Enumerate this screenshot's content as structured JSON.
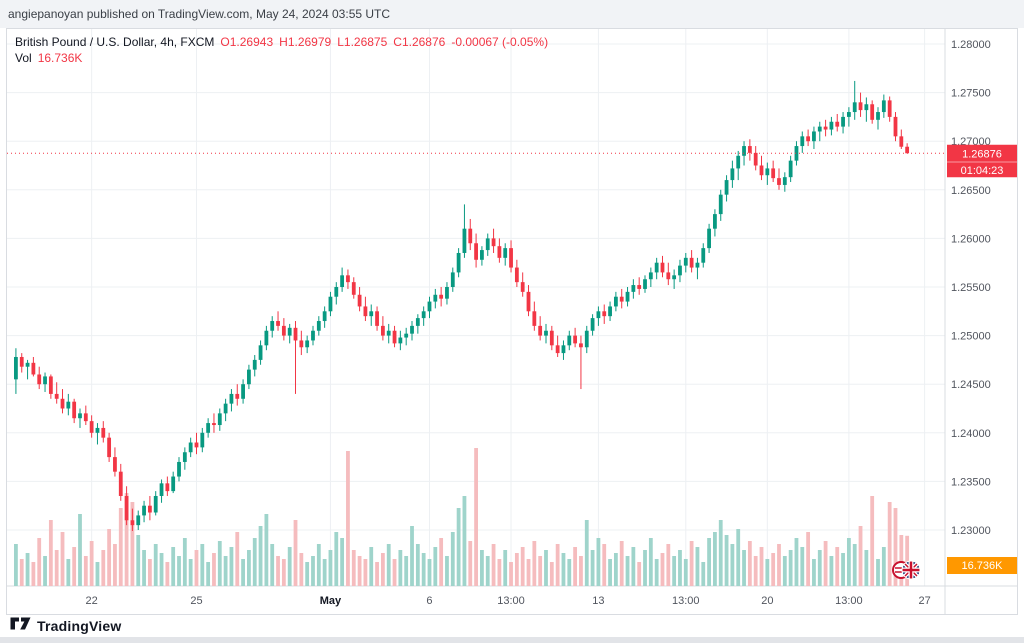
{
  "header": {
    "publish_line": "angiepanoyan published on TradingView.com, May 24, 2024 03:55 UTC"
  },
  "legend": {
    "symbol": "British Pound / U.S. Dollar, 4h, FXCM",
    "o_label": "O",
    "o": "1.26943",
    "h_label": "H",
    "h": "1.26979",
    "l_label": "L",
    "l": "1.26875",
    "c_label": "C",
    "c": "1.26876",
    "change": "-0.00067 (-0.05%)",
    "vol_label": "Vol",
    "vol_value": "16.736K"
  },
  "footer": {
    "brand": "TradingView"
  },
  "chart_data": {
    "type": "candlestick",
    "title": "British Pound / U.S. Dollar, 4h, FXCM",
    "interval": "4h",
    "exchange": "FXCM",
    "last_price": "1.26876",
    "countdown": "01:04:23",
    "volume_display": "16.736K",
    "y_axis": {
      "min": 1.23,
      "max": 1.28
    },
    "y_ticks": [
      "1.28000",
      "1.27500",
      "1.27000",
      "1.26500",
      "1.26000",
      "1.25500",
      "1.25000",
      "1.24500",
      "1.24000",
      "1.23500",
      "1.23000"
    ],
    "x_ticks": [
      {
        "label": "22",
        "i": 13
      },
      {
        "label": "25",
        "i": 31
      },
      {
        "label": "May",
        "i": 54
      },
      {
        "label": "6",
        "i": 71
      },
      {
        "label": "13:00",
        "i": 85
      },
      {
        "label": "13",
        "i": 100
      },
      {
        "label": "13:00",
        "i": 115
      },
      {
        "label": "20",
        "i": 129
      },
      {
        "label": "13:00",
        "i": 143
      },
      {
        "label": "27",
        "i": 156
      }
    ],
    "total_slots": 160,
    "colors": {
      "up": "#089981",
      "down": "#f23645",
      "vol_up": "#9fd4cb",
      "vol_down": "#f5bcbe",
      "grid": "#edf0f3",
      "axis_text": "#51555e",
      "last_price": "#f23645",
      "vol_badge": "#ff9800",
      "badge_text": "#ffffff"
    },
    "candles": [
      [
        1.2455,
        1.2487,
        1.244,
        1.2478
      ],
      [
        1.2478,
        1.2482,
        1.2462,
        1.2468
      ],
      [
        1.2468,
        1.2475,
        1.2455,
        1.2472
      ],
      [
        1.2472,
        1.2478,
        1.2458,
        1.246
      ],
      [
        1.246,
        1.2468,
        1.2445,
        1.245
      ],
      [
        1.245,
        1.2462,
        1.2442,
        1.2458
      ],
      [
        1.2458,
        1.246,
        1.2435,
        1.244
      ],
      [
        1.244,
        1.2452,
        1.243,
        1.2435
      ],
      [
        1.2435,
        1.2445,
        1.242,
        1.2425
      ],
      [
        1.2425,
        1.244,
        1.2418,
        1.2432
      ],
      [
        1.2432,
        1.2435,
        1.241,
        1.2415
      ],
      [
        1.2415,
        1.2425,
        1.2405,
        1.242
      ],
      [
        1.242,
        1.2428,
        1.2408,
        1.2412
      ],
      [
        1.2412,
        1.2418,
        1.2395,
        1.24
      ],
      [
        1.24,
        1.241,
        1.2388,
        1.2405
      ],
      [
        1.2405,
        1.2412,
        1.239,
        1.2395
      ],
      [
        1.2395,
        1.24,
        1.237,
        1.2375
      ],
      [
        1.2375,
        1.2385,
        1.2355,
        1.236
      ],
      [
        1.236,
        1.2368,
        1.233,
        1.2335
      ],
      [
        1.2335,
        1.2345,
        1.2305,
        1.231
      ],
      [
        1.231,
        1.2322,
        1.2299,
        1.2305
      ],
      [
        1.2305,
        1.232,
        1.23,
        1.2315
      ],
      [
        1.2315,
        1.233,
        1.2308,
        1.2325
      ],
      [
        1.2325,
        1.2335,
        1.231,
        1.2318
      ],
      [
        1.2318,
        1.234,
        1.2315,
        1.2335
      ],
      [
        1.2335,
        1.2352,
        1.2328,
        1.2348
      ],
      [
        1.2348,
        1.2355,
        1.2335,
        1.234
      ],
      [
        1.234,
        1.236,
        1.2338,
        1.2355
      ],
      [
        1.2355,
        1.2375,
        1.235,
        1.237
      ],
      [
        1.237,
        1.2385,
        1.2362,
        1.238
      ],
      [
        1.238,
        1.2395,
        1.2375,
        1.239
      ],
      [
        1.239,
        1.24,
        1.2378,
        1.2385
      ],
      [
        1.2385,
        1.2405,
        1.238,
        1.24
      ],
      [
        1.24,
        1.2415,
        1.2395,
        1.241
      ],
      [
        1.241,
        1.242,
        1.24,
        1.2408
      ],
      [
        1.2408,
        1.2425,
        1.2402,
        1.242
      ],
      [
        1.242,
        1.2435,
        1.2412,
        1.243
      ],
      [
        1.243,
        1.2445,
        1.2422,
        1.244
      ],
      [
        1.244,
        1.245,
        1.2428,
        1.2435
      ],
      [
        1.2435,
        1.2455,
        1.243,
        1.245
      ],
      [
        1.245,
        1.247,
        1.2445,
        1.2465
      ],
      [
        1.2465,
        1.248,
        1.2458,
        1.2475
      ],
      [
        1.2475,
        1.2495,
        1.247,
        1.249
      ],
      [
        1.249,
        1.251,
        1.2485,
        1.2505
      ],
      [
        1.2505,
        1.252,
        1.2498,
        1.2515
      ],
      [
        1.2515,
        1.2525,
        1.2505,
        1.251
      ],
      [
        1.251,
        1.2518,
        1.2495,
        1.25
      ],
      [
        1.25,
        1.2512,
        1.2492,
        1.2508
      ],
      [
        1.2508,
        1.2515,
        1.244,
        1.2495
      ],
      [
        1.2495,
        1.2505,
        1.248,
        1.2488
      ],
      [
        1.2488,
        1.25,
        1.2482,
        1.2495
      ],
      [
        1.2495,
        1.251,
        1.249,
        1.2505
      ],
      [
        1.2505,
        1.252,
        1.25,
        1.2515
      ],
      [
        1.2515,
        1.253,
        1.2508,
        1.2525
      ],
      [
        1.2525,
        1.2545,
        1.252,
        1.254
      ],
      [
        1.254,
        1.2555,
        1.2532,
        1.255
      ],
      [
        1.255,
        1.257,
        1.2545,
        1.2562
      ],
      [
        1.2562,
        1.2568,
        1.2548,
        1.2555
      ],
      [
        1.2555,
        1.256,
        1.2538,
        1.2542
      ],
      [
        1.2542,
        1.255,
        1.2525,
        1.253
      ],
      [
        1.253,
        1.254,
        1.2515,
        1.252
      ],
      [
        1.252,
        1.2532,
        1.251,
        1.2525
      ],
      [
        1.2525,
        1.253,
        1.2505,
        1.251
      ],
      [
        1.251,
        1.252,
        1.2495,
        1.25
      ],
      [
        1.25,
        1.2512,
        1.2492,
        1.2505
      ],
      [
        1.2505,
        1.251,
        1.2488,
        1.2492
      ],
      [
        1.2492,
        1.2505,
        1.2485,
        1.2498
      ],
      [
        1.2498,
        1.2508,
        1.249,
        1.2502
      ],
      [
        1.2502,
        1.2515,
        1.2495,
        1.251
      ],
      [
        1.251,
        1.2522,
        1.2502,
        1.2518
      ],
      [
        1.2518,
        1.253,
        1.251,
        1.2525
      ],
      [
        1.2525,
        1.254,
        1.2518,
        1.2535
      ],
      [
        1.2535,
        1.2548,
        1.2528,
        1.2542
      ],
      [
        1.2542,
        1.255,
        1.253,
        1.2538
      ],
      [
        1.2538,
        1.2555,
        1.2532,
        1.255
      ],
      [
        1.255,
        1.257,
        1.2545,
        1.2565
      ],
      [
        1.2565,
        1.259,
        1.256,
        1.2585
      ],
      [
        1.2585,
        1.2635,
        1.258,
        1.261
      ],
      [
        1.261,
        1.262,
        1.2588,
        1.2595
      ],
      [
        1.2595,
        1.2605,
        1.257,
        1.2578
      ],
      [
        1.2578,
        1.2592,
        1.2572,
        1.2588
      ],
      [
        1.2588,
        1.2605,
        1.2582,
        1.26
      ],
      [
        1.26,
        1.261,
        1.2585,
        1.2592
      ],
      [
        1.2592,
        1.26,
        1.2575,
        1.258
      ],
      [
        1.258,
        1.2595,
        1.2572,
        1.259
      ],
      [
        1.259,
        1.2598,
        1.2565,
        1.257
      ],
      [
        1.257,
        1.2578,
        1.255,
        1.2555
      ],
      [
        1.2555,
        1.2565,
        1.254,
        1.2545
      ],
      [
        1.2545,
        1.2552,
        1.252,
        1.2525
      ],
      [
        1.2525,
        1.2535,
        1.2505,
        1.251
      ],
      [
        1.251,
        1.252,
        1.2495,
        1.25
      ],
      [
        1.25,
        1.2512,
        1.2492,
        1.2505
      ],
      [
        1.2505,
        1.251,
        1.2485,
        1.249
      ],
      [
        1.249,
        1.25,
        1.2478,
        1.2482
      ],
      [
        1.2482,
        1.2495,
        1.2475,
        1.249
      ],
      [
        1.249,
        1.2505,
        1.2485,
        1.25
      ],
      [
        1.25,
        1.2508,
        1.2488,
        1.2492
      ],
      [
        1.2492,
        1.25,
        1.2445,
        1.2488
      ],
      [
        1.2488,
        1.251,
        1.2482,
        1.2505
      ],
      [
        1.2505,
        1.2522,
        1.25,
        1.2518
      ],
      [
        1.2518,
        1.253,
        1.251,
        1.2525
      ],
      [
        1.2525,
        1.2532,
        1.2512,
        1.252
      ],
      [
        1.252,
        1.2535,
        1.2515,
        1.253
      ],
      [
        1.253,
        1.2545,
        1.2525,
        1.254
      ],
      [
        1.254,
        1.2548,
        1.2528,
        1.2535
      ],
      [
        1.2535,
        1.255,
        1.253,
        1.2545
      ],
      [
        1.2545,
        1.2558,
        1.2538,
        1.2552
      ],
      [
        1.2552,
        1.256,
        1.2542,
        1.2548
      ],
      [
        1.2548,
        1.2562,
        1.2544,
        1.2558
      ],
      [
        1.2558,
        1.257,
        1.255,
        1.2565
      ],
      [
        1.2565,
        1.258,
        1.2558,
        1.2575
      ],
      [
        1.2575,
        1.2582,
        1.256,
        1.2565
      ],
      [
        1.2565,
        1.2575,
        1.2552,
        1.2558
      ],
      [
        1.2558,
        1.2568,
        1.2548,
        1.2562
      ],
      [
        1.2562,
        1.2578,
        1.2555,
        1.2572
      ],
      [
        1.2572,
        1.2585,
        1.2565,
        1.258
      ],
      [
        1.258,
        1.2588,
        1.2565,
        1.257
      ],
      [
        1.257,
        1.258,
        1.2558,
        1.2575
      ],
      [
        1.2575,
        1.2595,
        1.257,
        1.259
      ],
      [
        1.259,
        1.2615,
        1.2585,
        1.261
      ],
      [
        1.261,
        1.263,
        1.2602,
        1.2625
      ],
      [
        1.2625,
        1.265,
        1.2618,
        1.2645
      ],
      [
        1.2645,
        1.2665,
        1.2638,
        1.266
      ],
      [
        1.266,
        1.268,
        1.2652,
        1.2672
      ],
      [
        1.2672,
        1.269,
        1.266,
        1.2685
      ],
      [
        1.2685,
        1.27,
        1.2675,
        1.2695
      ],
      [
        1.2695,
        1.2702,
        1.268,
        1.2688
      ],
      [
        1.2688,
        1.2695,
        1.267,
        1.2675
      ],
      [
        1.2675,
        1.2685,
        1.266,
        1.2665
      ],
      [
        1.2665,
        1.2678,
        1.2655,
        1.2672
      ],
      [
        1.2672,
        1.268,
        1.2658,
        1.2662
      ],
      [
        1.2662,
        1.2672,
        1.265,
        1.2655
      ],
      [
        1.2655,
        1.2668,
        1.2648,
        1.2663
      ],
      [
        1.2663,
        1.2685,
        1.2658,
        1.268
      ],
      [
        1.268,
        1.27,
        1.2675,
        1.2695
      ],
      [
        1.2695,
        1.271,
        1.2688,
        1.2705
      ],
      [
        1.2705,
        1.2712,
        1.2695,
        1.27
      ],
      [
        1.27,
        1.2715,
        1.2692,
        1.271
      ],
      [
        1.271,
        1.272,
        1.27,
        1.2715
      ],
      [
        1.2715,
        1.2722,
        1.2705,
        1.2712
      ],
      [
        1.2712,
        1.2725,
        1.2706,
        1.272
      ],
      [
        1.272,
        1.2728,
        1.271,
        1.2715
      ],
      [
        1.2715,
        1.273,
        1.2708,
        1.2725
      ],
      [
        1.2725,
        1.2735,
        1.2715,
        1.273
      ],
      [
        1.273,
        1.2762,
        1.2722,
        1.274
      ],
      [
        1.274,
        1.275,
        1.2725,
        1.2732
      ],
      [
        1.2732,
        1.2745,
        1.272,
        1.2738
      ],
      [
        1.2738,
        1.2742,
        1.2718,
        1.2722
      ],
      [
        1.2722,
        1.2735,
        1.2712,
        1.273
      ],
      [
        1.273,
        1.2748,
        1.2724,
        1.2742
      ],
      [
        1.2742,
        1.2746,
        1.272,
        1.2725
      ],
      [
        1.2725,
        1.273,
        1.27,
        1.2705
      ],
      [
        1.2705,
        1.2712,
        1.2692,
        1.26943
      ],
      [
        1.26943,
        1.26979,
        1.26875,
        1.26876
      ]
    ],
    "volumes": [
      14,
      9,
      11,
      8,
      16,
      10,
      22,
      12,
      18,
      9,
      13,
      24,
      10,
      15,
      8,
      12,
      19,
      14,
      26,
      31,
      28,
      17,
      12,
      9,
      14,
      11,
      8,
      13,
      10,
      16,
      9,
      12,
      14,
      8,
      11,
      15,
      10,
      13,
      18,
      9,
      12,
      16,
      20,
      24,
      14,
      10,
      9,
      13,
      22,
      11,
      8,
      10,
      14,
      9,
      12,
      18,
      16,
      45,
      12,
      10,
      9,
      13,
      8,
      11,
      14,
      9,
      12,
      10,
      20,
      14,
      11,
      9,
      13,
      16,
      10,
      18,
      26,
      30,
      15,
      46,
      12,
      10,
      14,
      9,
      12,
      8,
      11,
      13,
      9,
      15,
      10,
      12,
      8,
      14,
      11,
      9,
      13,
      10,
      22,
      12,
      16,
      14,
      9,
      11,
      15,
      10,
      13,
      8,
      12,
      16,
      9,
      11,
      14,
      10,
      12,
      9,
      15,
      13,
      8,
      16,
      18,
      22,
      17,
      14,
      19,
      12,
      15,
      10,
      13,
      9,
      11,
      14,
      10,
      12,
      16,
      13,
      18,
      9,
      12,
      15,
      10,
      13,
      11,
      16,
      14,
      20,
      12,
      30,
      9,
      13,
      28,
      26,
      17,
      16.736
    ]
  }
}
